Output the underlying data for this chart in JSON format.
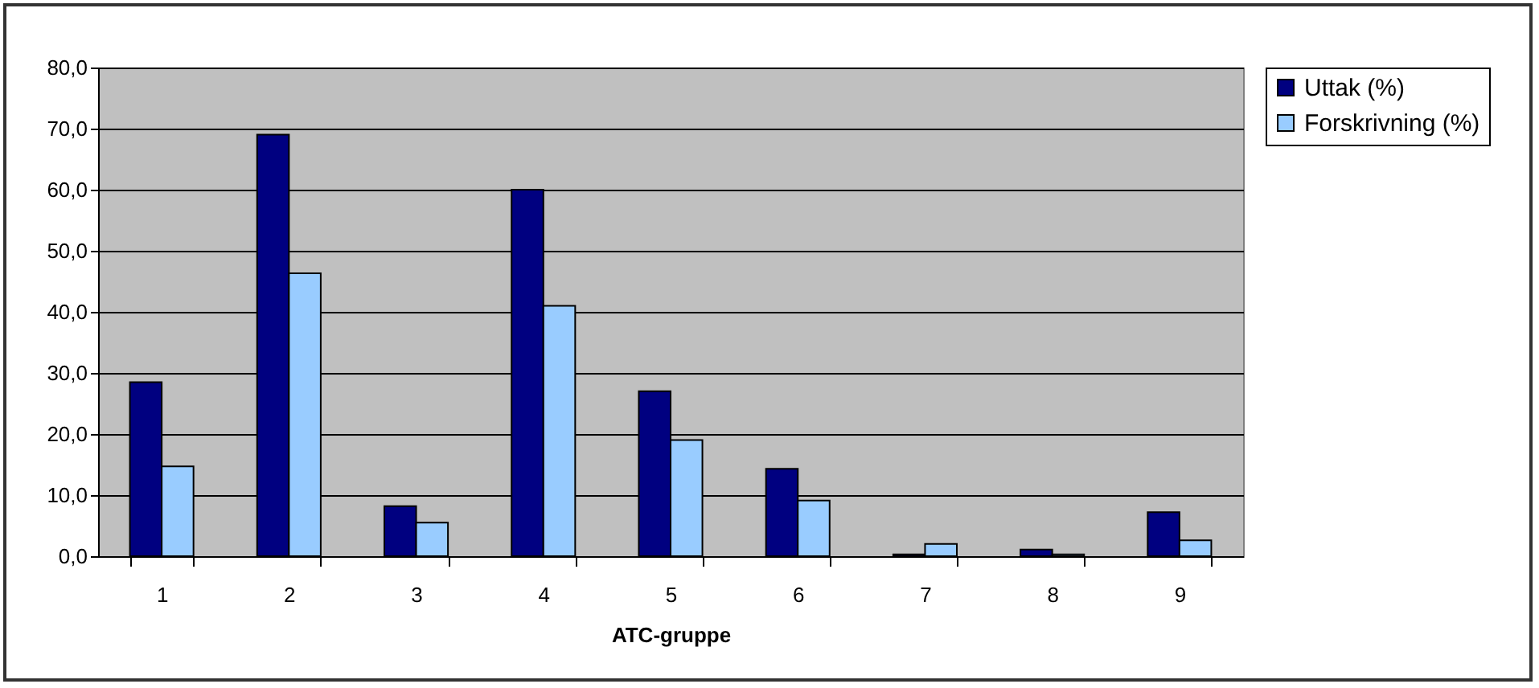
{
  "chart_data": {
    "type": "bar",
    "xlabel": "ATC-gruppe",
    "categories": [
      "1",
      "2",
      "3",
      "4",
      "5",
      "6",
      "7",
      "8",
      "9"
    ],
    "series": [
      {
        "name": "Uttak (%)",
        "color": "#000080",
        "values": [
          28.5,
          69.0,
          8.2,
          60.0,
          27.0,
          14.3,
          0.3,
          1.1,
          7.2
        ]
      },
      {
        "name": "Forskrivning (%)",
        "color": "#99ccff",
        "values": [
          14.7,
          46.3,
          5.5,
          41.0,
          19.0,
          9.1,
          2.0,
          0.3,
          2.6
        ]
      }
    ],
    "ylim": [
      0,
      80
    ],
    "yticks": [
      {
        "value": 0,
        "label": "0,0"
      },
      {
        "value": 10,
        "label": "10,0"
      },
      {
        "value": 20,
        "label": "20,0"
      },
      {
        "value": 30,
        "label": "30,0"
      },
      {
        "value": 40,
        "label": "40,0"
      },
      {
        "value": 50,
        "label": "50,0"
      },
      {
        "value": 60,
        "label": "60,0"
      },
      {
        "value": 70,
        "label": "70,0"
      },
      {
        "value": 80,
        "label": "80,0"
      }
    ],
    "grid": "y",
    "legend": "right"
  }
}
